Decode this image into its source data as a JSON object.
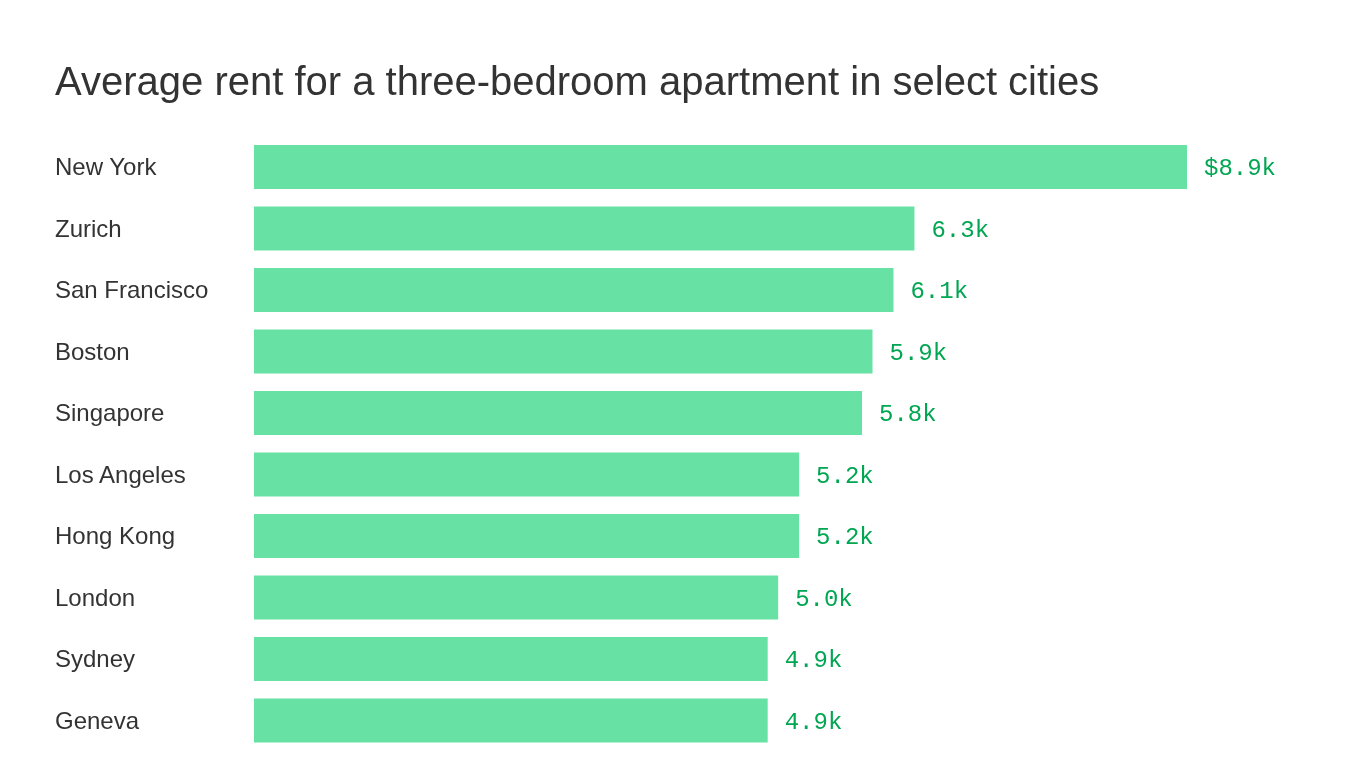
{
  "chart_data": {
    "type": "bar",
    "orientation": "horizontal",
    "title": "Average rent for a three-bedroom apartment in select cities",
    "categories": [
      "New York",
      "Zurich",
      "San Francisco",
      "Boston",
      "Singapore",
      "Los Angeles",
      "Hong Kong",
      "London",
      "Sydney",
      "Geneva"
    ],
    "values": [
      8.9,
      6.3,
      6.1,
      5.9,
      5.8,
      5.2,
      5.2,
      5.0,
      4.9,
      4.9
    ],
    "value_labels": [
      "$8.9k",
      "6.3k",
      "6.1k",
      "5.9k",
      "5.8k",
      "5.2k",
      "5.2k",
      "5.0k",
      "4.9k",
      "4.9k"
    ],
    "color": "#68e1a5"
  }
}
